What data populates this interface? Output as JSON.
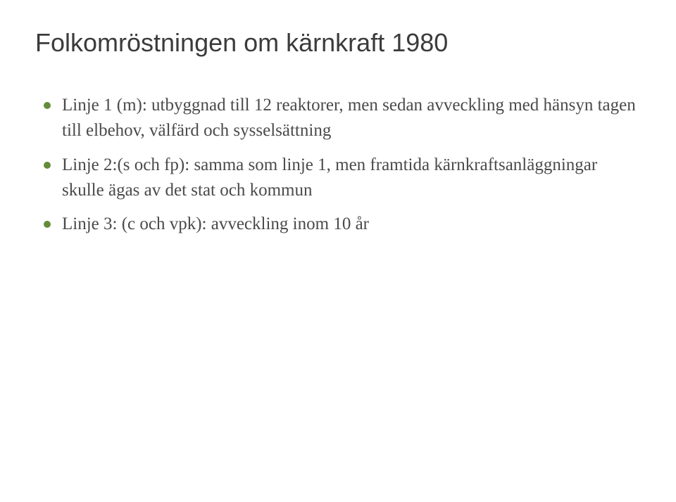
{
  "title": "Folkomröstningen om kärnkraft 1980",
  "bullets": [
    "Linje 1 (m): utbyggnad till 12 reaktorer, men sedan avveckling med hänsyn tagen till elbehov, välfärd och sysselsättning",
    "Linje 2:(s och fp): samma som linje 1, men framtida kärnkraftsanläggningar skulle ägas av det stat och kommun",
    "Linje 3: (c och vpk): avveckling inom 10 år"
  ],
  "colors": {
    "background": "#ffffff",
    "title_color": "#3b3b3b",
    "text_color": "#4a4a4a",
    "bullet_color": "#658c3a"
  },
  "typography": {
    "title_font": "Arial",
    "title_size_pt": 27,
    "body_font": "Georgia",
    "body_size_pt": 19
  }
}
